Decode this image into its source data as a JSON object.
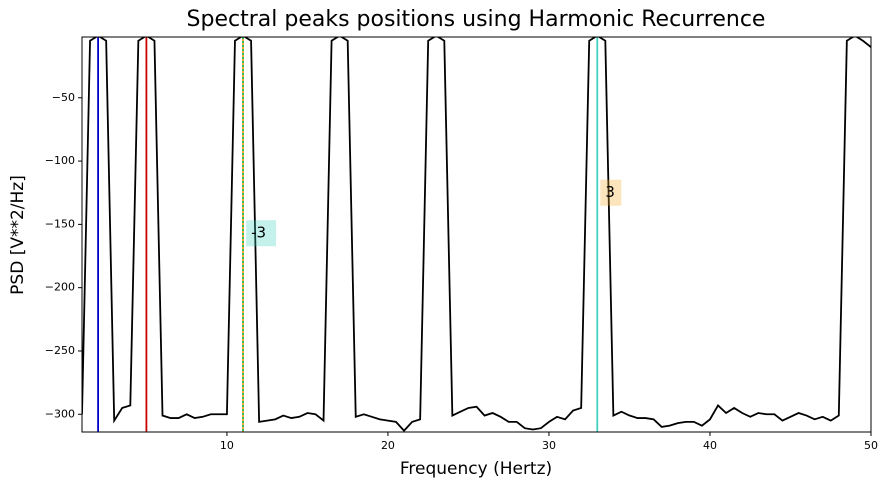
{
  "chart_data": {
    "type": "line",
    "title": "Spectral peaks positions using Harmonic Recurrence",
    "x_label": "Frequency (Hertz)",
    "y_label": "PSD [V**2/Hz]",
    "x": [
      1,
      1.5,
      2,
      2.5,
      3,
      3.5,
      4,
      4.5,
      5,
      5.5,
      6,
      6.5,
      7,
      7.5,
      8,
      8.5,
      9,
      9.5,
      10,
      10.5,
      11,
      11.5,
      12,
      12.5,
      13,
      13.5,
      14,
      14.5,
      15,
      15.5,
      16,
      16.5,
      17,
      17.5,
      18,
      18.5,
      19,
      19.5,
      20,
      20.5,
      21,
      21.5,
      22,
      22.5,
      23,
      23.5,
      24,
      24.5,
      25,
      25.5,
      26,
      26.5,
      27,
      27.5,
      28,
      28.5,
      29,
      29.5,
      30,
      30.5,
      31,
      31.5,
      32,
      32.5,
      33,
      33.5,
      34,
      34.5,
      35,
      35.5,
      36,
      36.5,
      37,
      37.5,
      38,
      38.5,
      39,
      39.5,
      40,
      40.5,
      41,
      41.5,
      42,
      42.5,
      43,
      43.5,
      44,
      44.5,
      45,
      45.5,
      46,
      46.5,
      47,
      47.5,
      48,
      48.5,
      49,
      49.5,
      50
    ],
    "series": [
      {
        "color": "#000000",
        "values": [
          -300,
          -5,
          -1,
          -5,
          -305,
          -295,
          -293,
          -5,
          -1,
          -5,
          -301,
          -303,
          -303,
          -300,
          -303,
          -302,
          -300,
          -300,
          -300,
          -5,
          -1,
          -5,
          -306,
          -305,
          -304,
          -301,
          -303,
          -302,
          -299,
          -300,
          -305,
          -5,
          -1,
          -5,
          -302,
          -300,
          -302,
          -304,
          -305,
          -306,
          -313,
          -306,
          -304,
          -5,
          -1,
          -5,
          -301,
          -298,
          -295,
          -294,
          -301,
          -299,
          -302,
          -306,
          -306,
          -311,
          -312,
          -311,
          -306,
          -302,
          -304,
          -297,
          -295,
          -5,
          -1,
          -5,
          -301,
          -298,
          -301,
          -303,
          -303,
          -304,
          -310,
          -309,
          -307,
          -306,
          -306,
          -309,
          -304,
          -293,
          -299,
          -295,
          -299,
          -302,
          -299,
          -300,
          -300,
          -305,
          -302,
          -299,
          -301,
          -304,
          -302,
          -305,
          -301,
          -5,
          -1,
          -5,
          -10
        ]
      }
    ],
    "vlines": [
      {
        "x": 2,
        "color": "#0000cc",
        "linestyle": "solid"
      },
      {
        "x": 5,
        "color": "#cc0000",
        "linestyle": "solid"
      },
      {
        "x": 11,
        "color": "#f0a020",
        "linestyle": "solid"
      },
      {
        "x": 11,
        "color": "#20c060",
        "linestyle": "dotted"
      },
      {
        "x": 33,
        "color": "#40d0c0",
        "linestyle": "solid"
      }
    ],
    "annotations": [
      {
        "text": "-3",
        "x": 11.5,
        "y": -157,
        "color": "#40d0c0"
      },
      {
        "text": "3",
        "x": 33.5,
        "y": -125,
        "color": "#f5a623"
      }
    ],
    "xlim": [
      1,
      50
    ],
    "ylim": [
      -314,
      -2
    ],
    "xticks": [
      10,
      20,
      30,
      40,
      50
    ],
    "yticks": [
      {
        "value": -50,
        "label": "−50"
      },
      {
        "value": -100,
        "label": "−100"
      },
      {
        "value": -150,
        "label": "−150"
      },
      {
        "value": -200,
        "label": "−200"
      },
      {
        "value": -250,
        "label": "−250"
      },
      {
        "value": -300,
        "label": "−300"
      }
    ]
  }
}
